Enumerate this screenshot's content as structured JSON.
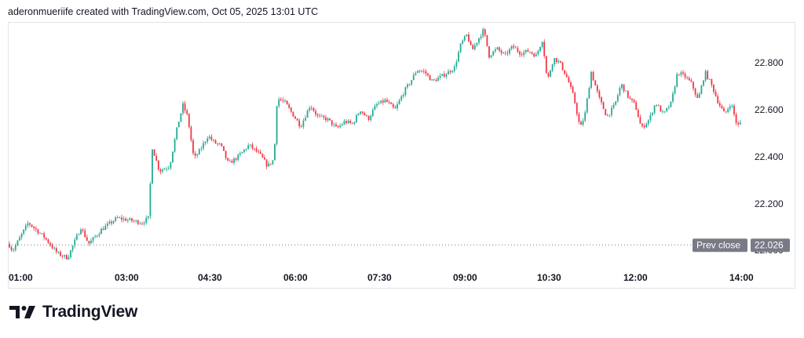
{
  "header": {
    "text": "aderonmueriife created with TradingView.com, Oct 05, 2025 13:01 UTC"
  },
  "brand": {
    "name": "TradingView"
  },
  "chart_data": {
    "type": "candlestick",
    "x_ticks": [
      "01:00",
      "03:00",
      "04:30",
      "06:00",
      "07:30",
      "09:00",
      "10:30",
      "12:00",
      "14:00"
    ],
    "y_ticks": [
      22.2,
      22.4,
      22.6,
      22.8
    ],
    "ylim": [
      21.95,
      22.97
    ],
    "prev_close": {
      "label": "Prev close",
      "value": "22.026",
      "numeric": 22.026
    },
    "colors": {
      "up": "#22ab94",
      "down": "#f23645",
      "wick": "#131722",
      "label_bg": "#787b86"
    },
    "anchors": [
      [
        0,
        22.03
      ],
      [
        5,
        22.0
      ],
      [
        25,
        22.12
      ],
      [
        45,
        22.06
      ],
      [
        62,
        21.99
      ],
      [
        75,
        21.97
      ],
      [
        92,
        22.1
      ],
      [
        102,
        22.03
      ],
      [
        118,
        22.09
      ],
      [
        138,
        22.14
      ],
      [
        155,
        22.13
      ],
      [
        170,
        22.12
      ],
      [
        178,
        22.14
      ],
      [
        183,
        22.44
      ],
      [
        192,
        22.34
      ],
      [
        205,
        22.36
      ],
      [
        215,
        22.53
      ],
      [
        222,
        22.62
      ],
      [
        228,
        22.57
      ],
      [
        236,
        22.39
      ],
      [
        244,
        22.43
      ],
      [
        254,
        22.49
      ],
      [
        262,
        22.46
      ],
      [
        270,
        22.45
      ],
      [
        280,
        22.37
      ],
      [
        292,
        22.4
      ],
      [
        306,
        22.45
      ],
      [
        320,
        22.41
      ],
      [
        330,
        22.36
      ],
      [
        338,
        22.39
      ],
      [
        342,
        22.65
      ],
      [
        352,
        22.63
      ],
      [
        362,
        22.58
      ],
      [
        372,
        22.53
      ],
      [
        384,
        22.62
      ],
      [
        394,
        22.57
      ],
      [
        406,
        22.56
      ],
      [
        418,
        22.52
      ],
      [
        428,
        22.55
      ],
      [
        438,
        22.54
      ],
      [
        448,
        22.6
      ],
      [
        458,
        22.56
      ],
      [
        468,
        22.62
      ],
      [
        480,
        22.64
      ],
      [
        492,
        22.6
      ],
      [
        504,
        22.68
      ],
      [
        512,
        22.72
      ],
      [
        520,
        22.77
      ],
      [
        530,
        22.76
      ],
      [
        540,
        22.72
      ],
      [
        550,
        22.74
      ],
      [
        560,
        22.76
      ],
      [
        568,
        22.78
      ],
      [
        576,
        22.88
      ],
      [
        584,
        22.92
      ],
      [
        590,
        22.85
      ],
      [
        598,
        22.9
      ],
      [
        605,
        22.94
      ],
      [
        612,
        22.83
      ],
      [
        622,
        22.86
      ],
      [
        632,
        22.83
      ],
      [
        642,
        22.87
      ],
      [
        652,
        22.84
      ],
      [
        662,
        22.85
      ],
      [
        672,
        22.83
      ],
      [
        680,
        22.9
      ],
      [
        686,
        22.72
      ],
      [
        694,
        22.82
      ],
      [
        702,
        22.8
      ],
      [
        712,
        22.73
      ],
      [
        720,
        22.65
      ],
      [
        728,
        22.52
      ],
      [
        734,
        22.58
      ],
      [
        742,
        22.76
      ],
      [
        752,
        22.65
      ],
      [
        762,
        22.57
      ],
      [
        772,
        22.62
      ],
      [
        780,
        22.71
      ],
      [
        790,
        22.65
      ],
      [
        798,
        22.62
      ],
      [
        806,
        22.52
      ],
      [
        816,
        22.56
      ],
      [
        824,
        22.63
      ],
      [
        834,
        22.58
      ],
      [
        844,
        22.63
      ],
      [
        852,
        22.76
      ],
      [
        862,
        22.74
      ],
      [
        870,
        22.71
      ],
      [
        878,
        22.64
      ],
      [
        887,
        22.76
      ],
      [
        896,
        22.7
      ],
      [
        904,
        22.63
      ],
      [
        912,
        22.58
      ],
      [
        920,
        22.63
      ],
      [
        928,
        22.53
      ],
      [
        934,
        22.55
      ]
    ]
  }
}
